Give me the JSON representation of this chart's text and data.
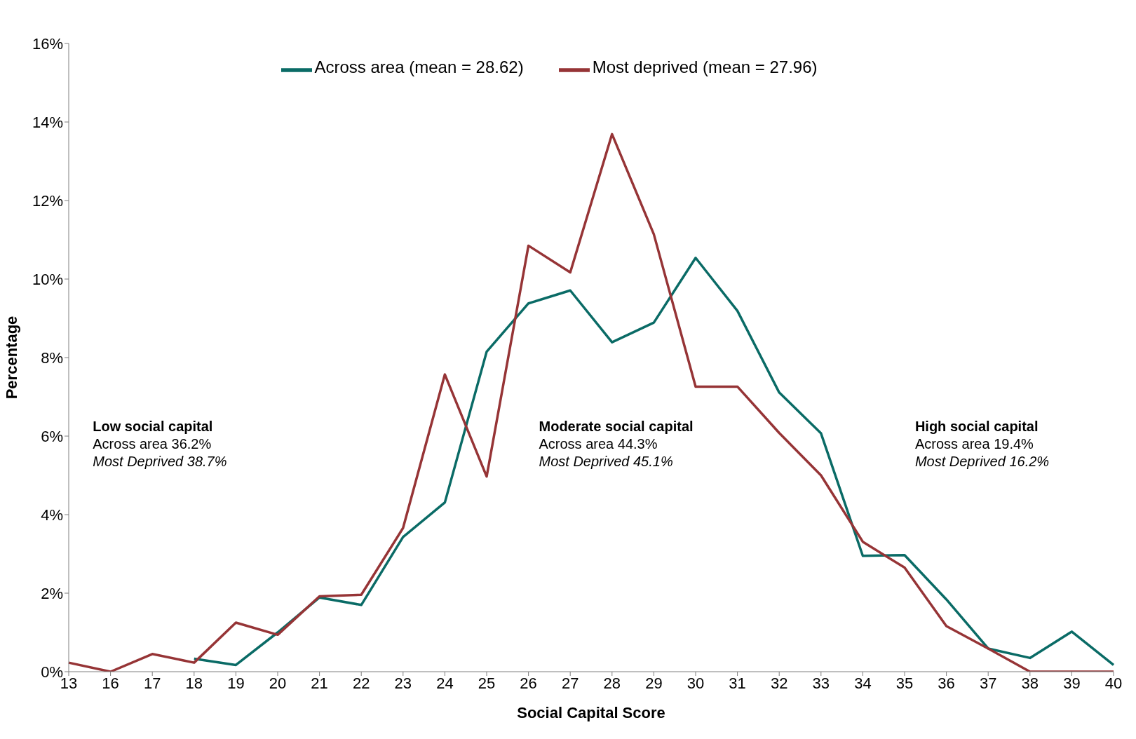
{
  "chart_data": {
    "type": "line",
    "xlabel": "Social Capital Score",
    "ylabel": "Percentage",
    "categories": [
      "13",
      "16",
      "17",
      "18",
      "19",
      "20",
      "21",
      "22",
      "23",
      "24",
      "25",
      "26",
      "27",
      "28",
      "29",
      "30",
      "31",
      "32",
      "33",
      "34",
      "35",
      "36",
      "37",
      "38",
      "39",
      "40"
    ],
    "series": [
      {
        "name": "Across area (mean = 28.62)",
        "color": "#0a6b66",
        "values": [
          null,
          null,
          null,
          0.33,
          0.17,
          1.0,
          1.89,
          1.7,
          3.43,
          4.31,
          8.15,
          9.38,
          9.71,
          8.39,
          8.89,
          10.54,
          9.19,
          7.11,
          6.07,
          2.95,
          2.97,
          1.84,
          0.59,
          0.35,
          1.02,
          0.17
        ]
      },
      {
        "name": "Most deprived (mean = 27.96)",
        "color": "#963436",
        "values": [
          0.23,
          0,
          0.45,
          0.23,
          1.25,
          0.94,
          1.92,
          1.96,
          3.66,
          7.57,
          4.97,
          10.85,
          10.17,
          13.69,
          11.14,
          7.26,
          7.26,
          6.08,
          5.0,
          3.31,
          2.65,
          1.16,
          0.59,
          0,
          0,
          0
        ]
      }
    ],
    "ylim": [
      0,
      16
    ],
    "yticks": [
      {
        "value": 0,
        "label": "0%"
      },
      {
        "value": 2,
        "label": "2%"
      },
      {
        "value": 4,
        "label": "4%"
      },
      {
        "value": 6,
        "label": "6%"
      },
      {
        "value": 8,
        "label": "8%"
      },
      {
        "value": 10,
        "label": "10%"
      },
      {
        "value": 12,
        "label": "12%"
      },
      {
        "value": 14,
        "label": "14%"
      },
      {
        "value": 16,
        "label": "16%"
      }
    ],
    "legend": "top",
    "marker": "none",
    "line_style": "solid",
    "annotations": [
      "Low social capital",
      "Across area 36.2%",
      "Most Deprived 38.7%",
      "Moderate social capital",
      "Across area 44.3%",
      "Most Deprived 45.1%",
      "High social capital",
      "Across area 19.4%",
      "Most Deprived 16.2%"
    ]
  }
}
